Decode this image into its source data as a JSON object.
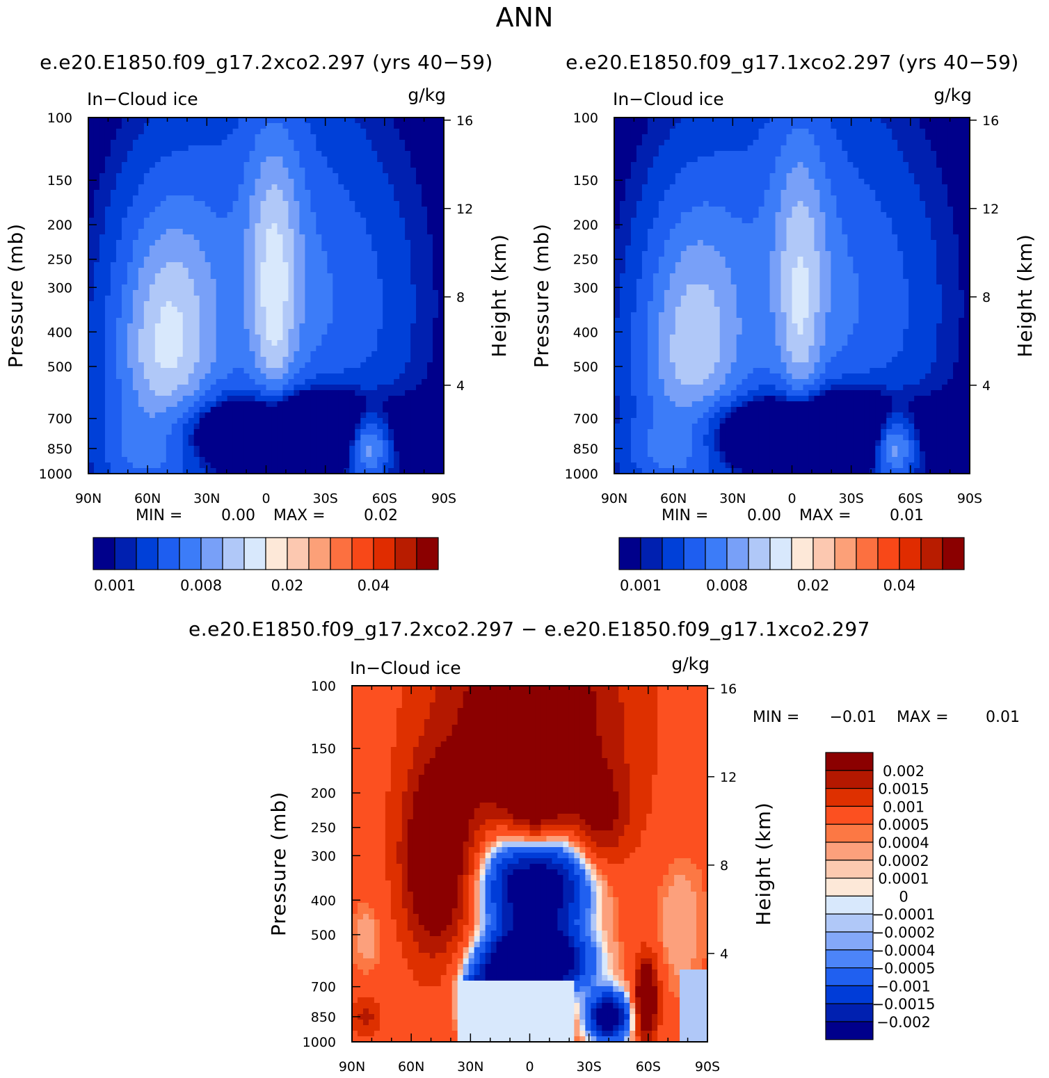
{
  "page_title": "ANN",
  "panels": {
    "p1": {
      "case": "e.e20.E1850.f09_g17.2xco2.297 (yrs 40−59)",
      "variable": "In−Cloud ice",
      "units": "g/kg",
      "ylabel": "Pressure (mb)",
      "y2label": "Height (km)",
      "min_label": "MIN =",
      "min_value": "0.00",
      "max_label": "MAX =",
      "max_value": "0.02"
    },
    "p2": {
      "case": "e.e20.E1850.f09_g17.1xco2.297 (yrs 40−59)",
      "variable": "In−Cloud ice",
      "units": "g/kg",
      "ylabel": "Pressure (mb)",
      "y2label": "Height (km)",
      "min_label": "MIN =",
      "min_value": "0.00",
      "max_label": "MAX =",
      "max_value": "0.01"
    },
    "p3": {
      "case": "e.e20.E1850.f09_g17.2xco2.297 − e.e20.E1850.f09_g17.1xco2.297",
      "variable": "In−Cloud ice",
      "units": "g/kg",
      "ylabel": "Pressure (mb)",
      "y2label": "Height (km)",
      "min_label": "MIN =",
      "min_value": "−0.01",
      "max_label": "MAX =",
      "max_value": "0.01"
    }
  },
  "chart_data": [
    {
      "type": "contour",
      "title": "e.e20.E1850.f09_g17.2xco2.297 (yrs 40−59)",
      "variable": "In−Cloud ice (g/kg)",
      "x": [
        "90N",
        "60N",
        "30N",
        "0",
        "30S",
        "60S",
        "90S"
      ],
      "x_range_deg_lat": [
        90,
        -90
      ],
      "y_pressure_ticks": [
        100,
        150,
        200,
        250,
        300,
        400,
        500,
        700,
        850,
        1000
      ],
      "y_height_ticks_km": [
        4,
        8,
        12,
        16
      ],
      "y_scale": "log",
      "colorbar_ticks": [
        "0.001",
        "0.008",
        "0.02",
        "0.04"
      ],
      "min": 0.0,
      "max": 0.02
    },
    {
      "type": "contour",
      "title": "e.e20.E1850.f09_g17.1xco2.297 (yrs 40−59)",
      "variable": "In−Cloud ice (g/kg)",
      "x": [
        "90N",
        "60N",
        "30N",
        "0",
        "30S",
        "60S",
        "90S"
      ],
      "x_range_deg_lat": [
        90,
        -90
      ],
      "y_pressure_ticks": [
        100,
        150,
        200,
        250,
        300,
        400,
        500,
        700,
        850,
        1000
      ],
      "y_height_ticks_km": [
        4,
        8,
        12,
        16
      ],
      "y_scale": "log",
      "colorbar_ticks": [
        "0.001",
        "0.008",
        "0.02",
        "0.04"
      ],
      "min": 0.0,
      "max": 0.01
    },
    {
      "type": "contour",
      "title": "e.e20.E1850.f09_g17.2xco2.297 − e.e20.E1850.f09_g17.1xco2.297",
      "variable": "In−Cloud ice (g/kg)",
      "x": [
        "90N",
        "60N",
        "30N",
        "0",
        "30S",
        "60S",
        "90S"
      ],
      "x_range_deg_lat": [
        90,
        -90
      ],
      "y_pressure_ticks": [
        100,
        150,
        200,
        250,
        300,
        400,
        500,
        700,
        850,
        1000
      ],
      "y_height_ticks_km": [
        4,
        8,
        12,
        16
      ],
      "y_scale": "log",
      "colorbar_ticks": [
        "0.002",
        "0.0015",
        "0.001",
        "0.0005",
        "0.0004",
        "0.0002",
        "0.0001",
        "0",
        "−0.0001",
        "−0.0002",
        "−0.0004",
        "−0.0005",
        "−0.001",
        "−0.0015",
        "−0.002"
      ],
      "min": -0.01,
      "max": 0.01
    }
  ],
  "colors": {
    "seq": [
      "#00008b",
      "#0020b0",
      "#0040d8",
      "#1e5ef0",
      "#3c7cf8",
      "#78a0f8",
      "#b0c8f8",
      "#d8e8fc",
      "#fde8d8",
      "#fcc8b0",
      "#fca078",
      "#fc7040",
      "#f84818",
      "#e02c00",
      "#b81c00",
      "#8b0000"
    ],
    "div": [
      "#8b0000",
      "#b41800",
      "#de3000",
      "#fc5020",
      "#fc7844",
      "#fca07c",
      "#fccab0",
      "#fde8d8",
      "#d8e8fc",
      "#b0c8f8",
      "#84a8f8",
      "#4c84f8",
      "#2060f0",
      "#003cd8",
      "#0020b0",
      "#00008b"
    ]
  }
}
